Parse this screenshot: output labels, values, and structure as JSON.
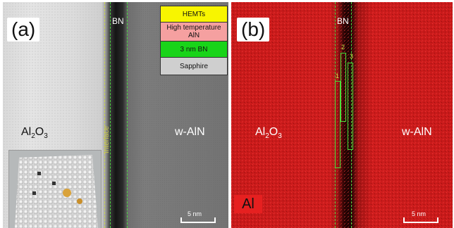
{
  "panel_a": {
    "tag": "(a)",
    "bn_label": "BN",
    "left_material": "Al",
    "left_material_sub1": "2",
    "left_material_mid": "O",
    "left_material_sub2": "3",
    "right_material": "w-AlN",
    "interface_label": "Interface",
    "scale_label": "5 nm",
    "layer_stack": [
      {
        "label": "HEMTs",
        "color": "#f8f500"
      },
      {
        "label": "High temperature AlN",
        "color": "#f5a0a0"
      },
      {
        "label": "3 nm BN",
        "color": "#19d419"
      },
      {
        "label": "Sapphire",
        "color": "#cfcfcf"
      }
    ]
  },
  "panel_b": {
    "tag": "(b)",
    "bn_label": "BN",
    "left_material": "Al",
    "left_material_sub1": "2",
    "left_material_mid": "O",
    "left_material_sub2": "3",
    "right_material": "w-AlN",
    "element_label": "Al",
    "scale_label": "5 nm",
    "region_numbers": [
      "1",
      "2",
      "3"
    ]
  }
}
